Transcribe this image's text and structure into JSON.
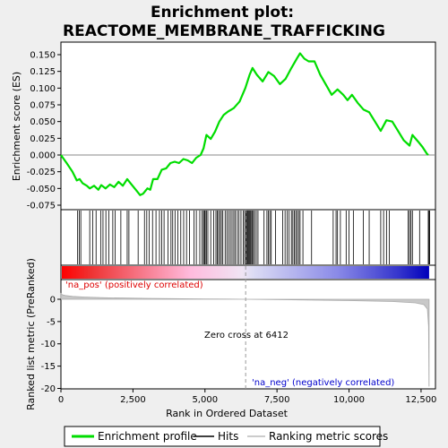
{
  "chart_data": {
    "type": "line",
    "title_line1": "Enrichment plot:",
    "title_line2": "REACTOME_MEMBRANE_TRAFFICKING",
    "top_panel": {
      "ylabel": "Enrichment score (ES)",
      "ylim": [
        -0.08,
        0.16
      ],
      "yticks": [
        -0.075,
        -0.05,
        -0.025,
        0.0,
        0.025,
        0.05,
        0.075,
        0.1,
        0.125,
        0.15
      ],
      "ytick_labels": [
        "-0.075",
        "-0.050",
        "-0.025",
        "0.000",
        "0.025",
        "0.050",
        "0.075",
        "0.100",
        "0.125",
        "0.150"
      ],
      "series_color": "#00dd00",
      "es_profile": [
        [
          0,
          0.0
        ],
        [
          200,
          -0.012
        ],
        [
          400,
          -0.025
        ],
        [
          550,
          -0.038
        ],
        [
          650,
          -0.036
        ],
        [
          750,
          -0.042
        ],
        [
          900,
          -0.046
        ],
        [
          1000,
          -0.05
        ],
        [
          1150,
          -0.046
        ],
        [
          1300,
          -0.052
        ],
        [
          1400,
          -0.045
        ],
        [
          1550,
          -0.05
        ],
        [
          1700,
          -0.044
        ],
        [
          1850,
          -0.048
        ],
        [
          2000,
          -0.04
        ],
        [
          2150,
          -0.046
        ],
        [
          2300,
          -0.036
        ],
        [
          2450,
          -0.044
        ],
        [
          2600,
          -0.052
        ],
        [
          2750,
          -0.06
        ],
        [
          2850,
          -0.058
        ],
        [
          3000,
          -0.05
        ],
        [
          3100,
          -0.052
        ],
        [
          3200,
          -0.036
        ],
        [
          3350,
          -0.036
        ],
        [
          3500,
          -0.022
        ],
        [
          3650,
          -0.02
        ],
        [
          3800,
          -0.012
        ],
        [
          3950,
          -0.01
        ],
        [
          4100,
          -0.012
        ],
        [
          4250,
          -0.006
        ],
        [
          4400,
          -0.008
        ],
        [
          4550,
          -0.012
        ],
        [
          4700,
          -0.004
        ],
        [
          4850,
          0.0
        ],
        [
          4950,
          0.01
        ],
        [
          5050,
          0.03
        ],
        [
          5200,
          0.024
        ],
        [
          5350,
          0.035
        ],
        [
          5500,
          0.05
        ],
        [
          5650,
          0.06
        ],
        [
          5800,
          0.065
        ],
        [
          6000,
          0.07
        ],
        [
          6200,
          0.08
        ],
        [
          6400,
          0.1
        ],
        [
          6550,
          0.12
        ],
        [
          6650,
          0.13
        ],
        [
          6800,
          0.12
        ],
        [
          7000,
          0.11
        ],
        [
          7200,
          0.124
        ],
        [
          7400,
          0.118
        ],
        [
          7600,
          0.106
        ],
        [
          7800,
          0.114
        ],
        [
          8000,
          0.13
        ],
        [
          8200,
          0.145
        ],
        [
          8300,
          0.152
        ],
        [
          8450,
          0.144
        ],
        [
          8600,
          0.14
        ],
        [
          8800,
          0.14
        ],
        [
          9000,
          0.12
        ],
        [
          9200,
          0.105
        ],
        [
          9400,
          0.09
        ],
        [
          9600,
          0.098
        ],
        [
          9800,
          0.09
        ],
        [
          9950,
          0.082
        ],
        [
          10100,
          0.09
        ],
        [
          10300,
          0.078
        ],
        [
          10500,
          0.068
        ],
        [
          10700,
          0.064
        ],
        [
          10900,
          0.05
        ],
        [
          11100,
          0.036
        ],
        [
          11300,
          0.052
        ],
        [
          11500,
          0.05
        ],
        [
          11700,
          0.036
        ],
        [
          11900,
          0.022
        ],
        [
          12100,
          0.014
        ],
        [
          12200,
          0.03
        ],
        [
          12400,
          0.02
        ],
        [
          12550,
          0.012
        ],
        [
          12700,
          0.002
        ],
        [
          12750,
          0.0
        ]
      ]
    },
    "hits_panel": {
      "hit_positions": [
        580,
        640,
        690,
        1000,
        1100,
        1220,
        1380,
        1460,
        1560,
        1660,
        1800,
        1880,
        2080,
        2300,
        2360,
        2680,
        2900,
        2980,
        3060,
        3180,
        3300,
        3420,
        3500,
        3580,
        3720,
        3820,
        3880,
        3960,
        4060,
        4160,
        4260,
        4360,
        4460,
        4620,
        4700,
        4820,
        4900,
        4950,
        4980,
        5010,
        5050,
        5100,
        5200,
        5300,
        5380,
        5430,
        5470,
        5520,
        5570,
        5620,
        5700,
        5760,
        5820,
        5880,
        5940,
        6000,
        6050,
        6120,
        6180,
        6250,
        6330,
        6380,
        6420,
        6450,
        6480,
        6510,
        6540,
        6570,
        6600,
        6640,
        6680,
        6720,
        6780,
        6840,
        7050,
        7150,
        7200,
        7250,
        7300,
        7450,
        7700,
        7780,
        7850,
        7920,
        8000,
        8050,
        8100,
        8150,
        8200,
        8250,
        8300,
        8400,
        8700,
        9450,
        9550,
        9600,
        9700,
        9900,
        10000,
        10150,
        10500,
        10700,
        11100,
        11200,
        11300,
        11400,
        12050,
        12100,
        12150,
        12200,
        12450,
        12750,
        12780,
        12800
      ]
    },
    "metric_panel": {
      "ylabel": "Ranked list metric (PreRanked)",
      "xlabel": "Rank in Ordered Dataset",
      "xlim": [
        0,
        13000
      ],
      "xticks": [
        0,
        2500,
        5000,
        7500,
        10000,
        12500
      ],
      "xtick_labels": [
        "0",
        "2,500",
        "5,000",
        "7,500",
        "10,000",
        "12,500"
      ],
      "ylim": [
        -20,
        2
      ],
      "yticks": [
        0,
        -5,
        -10,
        -15,
        -20
      ],
      "ytick_labels": [
        "0",
        "-5",
        "-10",
        "-15",
        "-20"
      ],
      "metric_curve": [
        [
          0,
          1.3
        ],
        [
          50,
          1.0
        ],
        [
          150,
          0.85
        ],
        [
          400,
          0.65
        ],
        [
          800,
          0.5
        ],
        [
          1500,
          0.35
        ],
        [
          3000,
          0.2
        ],
        [
          5000,
          0.08
        ],
        [
          6412,
          0.0
        ],
        [
          8000,
          -0.12
        ],
        [
          10000,
          -0.3
        ],
        [
          11500,
          -0.5
        ],
        [
          12300,
          -0.8
        ],
        [
          12600,
          -1.2
        ],
        [
          12720,
          -2.2
        ],
        [
          12760,
          -6.0
        ],
        [
          12775,
          -19.5
        ],
        [
          12780,
          -19.5
        ]
      ],
      "zero_cross_label": "Zero cross at 6412",
      "zero_cross_rank": 6412,
      "pos_label": "'na_pos' (positively correlated)",
      "neg_label": "'na_neg' (negatively correlated)",
      "pos_color": "#dd0000",
      "neg_color": "#0000cc"
    },
    "legend": {
      "items": [
        {
          "label": "Enrichment profile",
          "color": "#00dd00",
          "kind": "thick-line"
        },
        {
          "label": "Hits",
          "color": "#000000",
          "kind": "line"
        },
        {
          "label": "Ranking metric scores",
          "color": "#bbbbbb",
          "kind": "line"
        }
      ]
    }
  }
}
